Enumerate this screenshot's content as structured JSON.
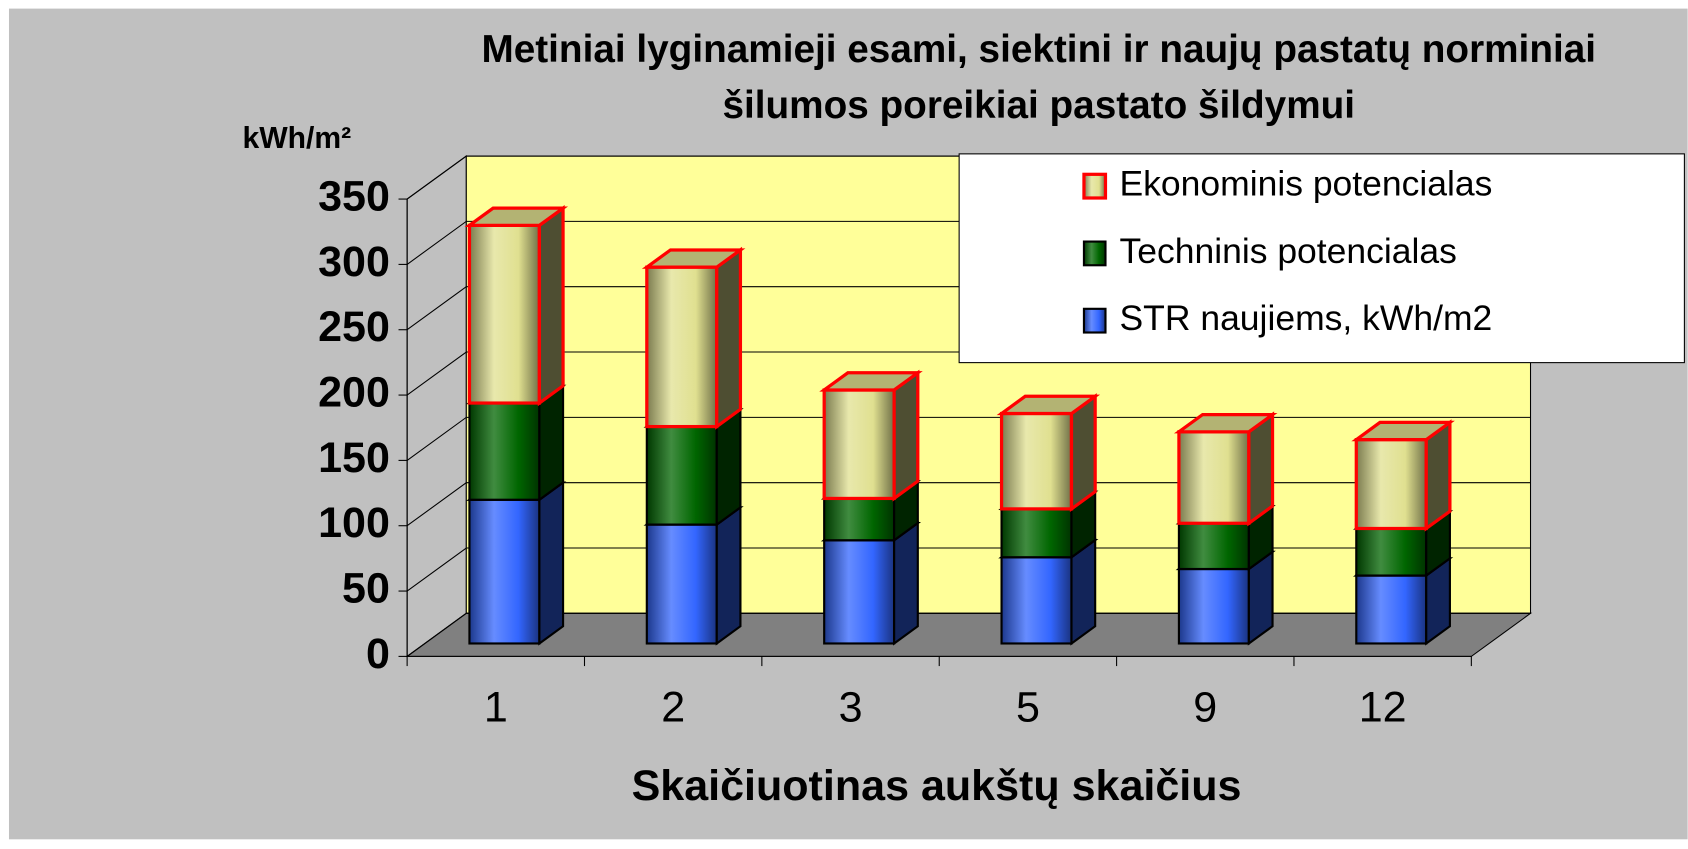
{
  "chart_data": {
    "type": "bar3d_stacked",
    "title": [
      "Metiniai lyginamieji esami, siektini ir naujų pastatų norminiai",
      "šilumos poreikiai pastato šildymui"
    ],
    "y_label": "kWh/m²",
    "x_label": "Skaičiuotinas aukštų skaičius",
    "categories": [
      "1",
      "2",
      "3",
      "5",
      "9",
      "12"
    ],
    "series": [
      {
        "name": "STR naujiems, kWh/m2",
        "color": "#3366ff",
        "values": [
          110,
          91,
          79,
          66,
          57,
          52
        ]
      },
      {
        "name": "Techninis potencialas",
        "color": "#006600",
        "values": [
          74,
          75,
          32,
          37,
          35,
          36
        ]
      },
      {
        "name": "Ekonominis potencialas",
        "color": "#e0e090",
        "edge": "#ff0000",
        "values": [
          136,
          122,
          83,
          73,
          70,
          68
        ]
      }
    ],
    "ylim": [
      0,
      350
    ],
    "yticks": [
      0,
      50,
      100,
      150,
      200,
      250,
      300,
      350
    ],
    "grid": true,
    "legend": "upper right"
  }
}
